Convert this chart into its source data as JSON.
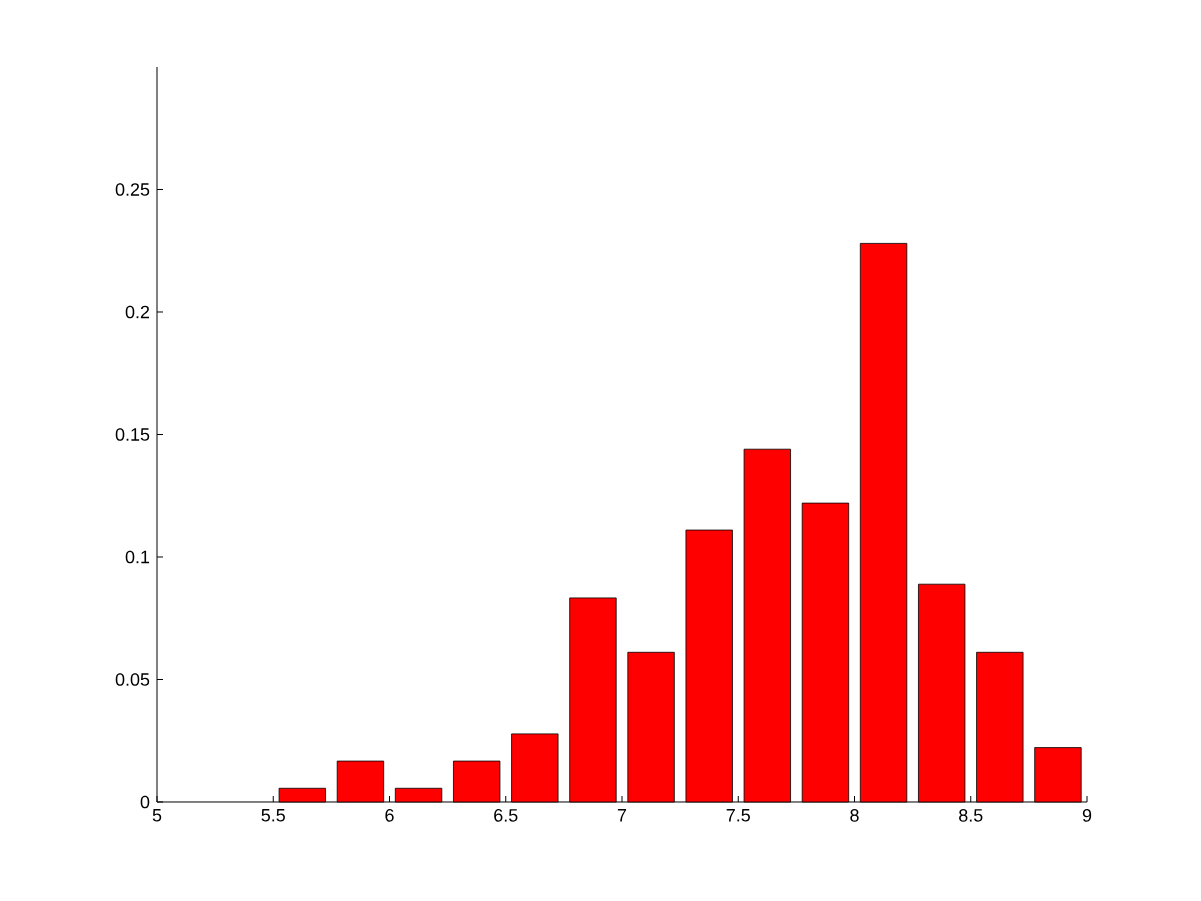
{
  "chart_data": {
    "type": "bar",
    "x": [
      5.625,
      5.875,
      6.125,
      6.375,
      6.625,
      6.875,
      7.125,
      7.375,
      7.625,
      7.875,
      8.125,
      8.375,
      8.625,
      8.875
    ],
    "values": [
      0.0056,
      0.0167,
      0.0056,
      0.0167,
      0.0278,
      0.0833,
      0.0611,
      0.111,
      0.144,
      0.122,
      0.228,
      0.0889,
      0.0611,
      0.0222
    ],
    "color": "#ff0000",
    "xlim": [
      5,
      9
    ],
    "ylim": [
      0,
      0.3
    ],
    "xticks": [
      5,
      5.5,
      6,
      6.5,
      7,
      7.5,
      8,
      8.5,
      9
    ],
    "yticks": [
      0,
      0.05,
      0.1,
      0.15,
      0.2,
      0.25
    ]
  }
}
